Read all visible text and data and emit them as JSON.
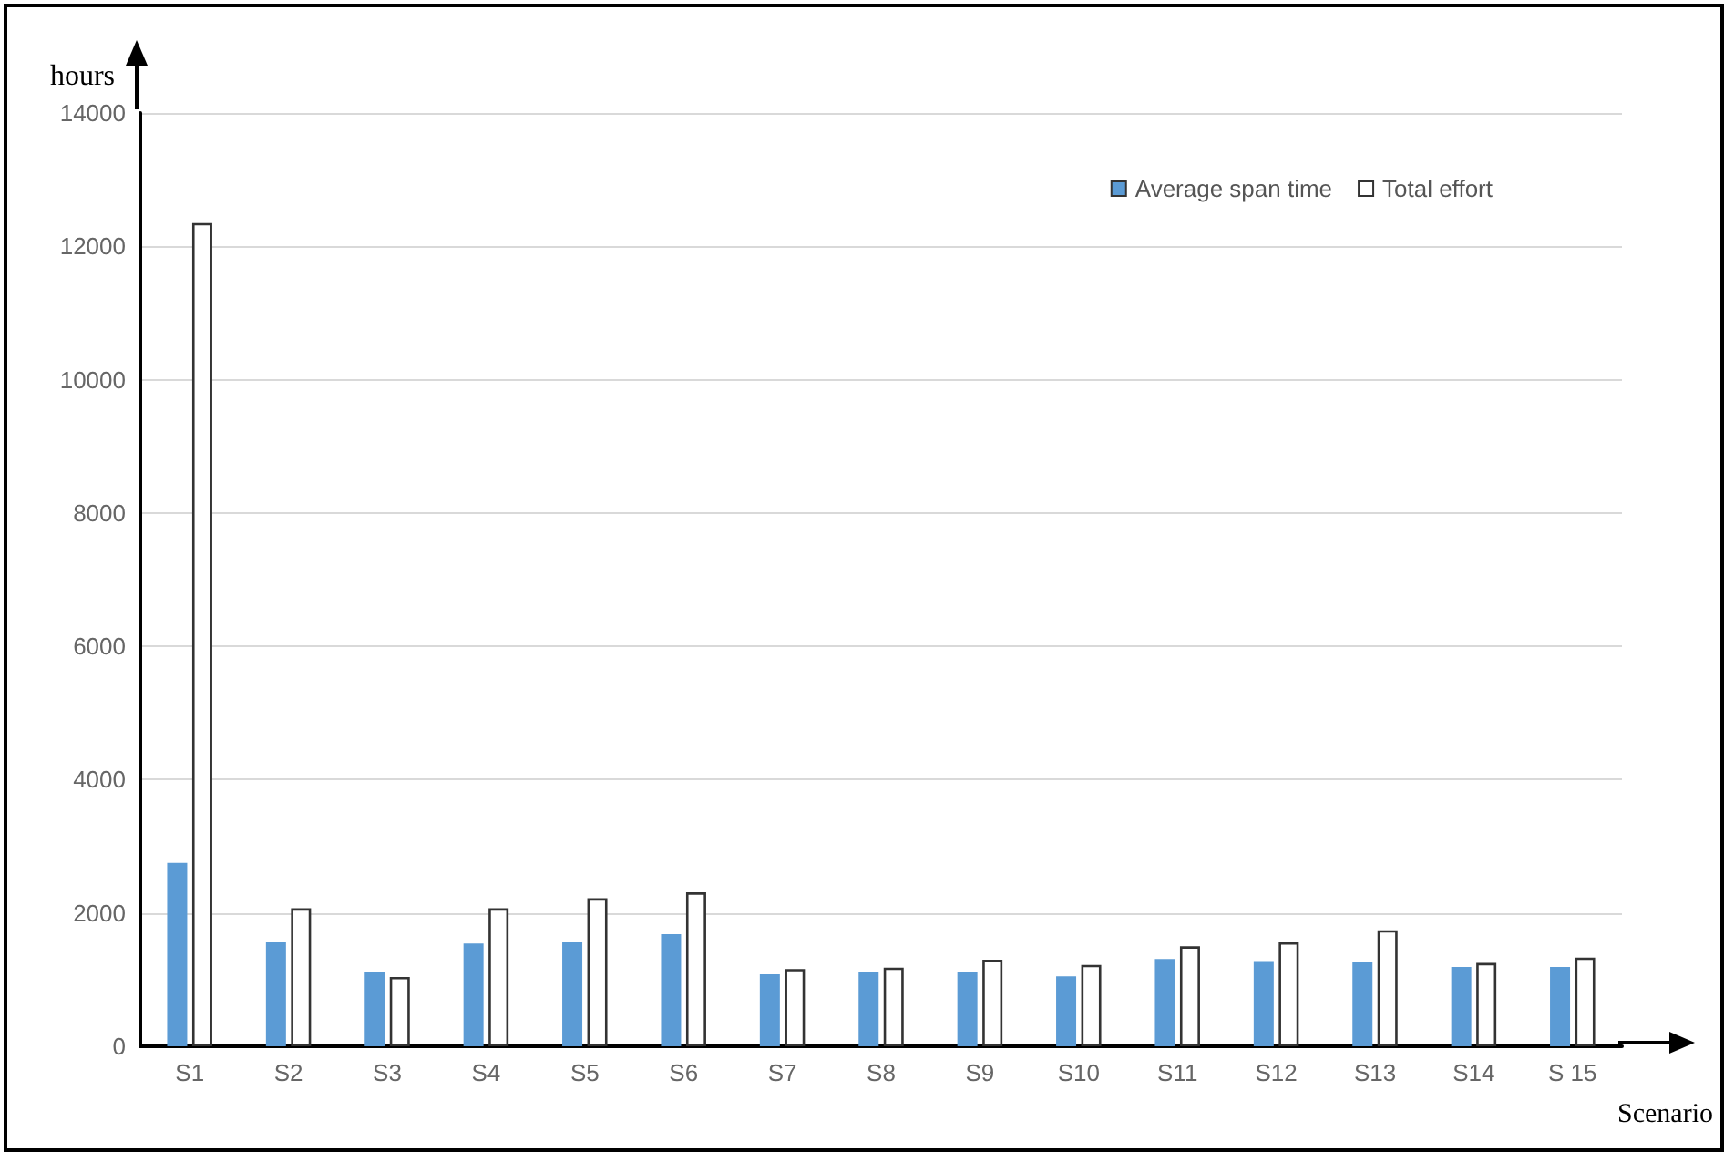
{
  "chart_data": {
    "type": "bar",
    "xlabel": "Scenario",
    "ylabel": "hours",
    "categories": [
      "S1",
      "S2",
      "S3",
      "S4",
      "S5",
      "S6",
      "S7",
      "S8",
      "S9",
      "S10",
      "S11",
      "S12",
      "S13",
      "S14",
      "S 15"
    ],
    "series": [
      {
        "name": "Average span time",
        "color": "#5b9bd5",
        "values": [
          2750,
          1560,
          1110,
          1540,
          1560,
          1680,
          1080,
          1110,
          1110,
          1050,
          1310,
          1280,
          1260,
          1190,
          1190
        ]
      },
      {
        "name": "Total effort",
        "color": "#ffffff",
        "values": [
          12350,
          2070,
          1040,
          2070,
          2220,
          2310,
          1160,
          1180,
          1300,
          1220,
          1500,
          1560,
          1740,
          1250,
          1330
        ]
      }
    ],
    "ylim": [
      0,
      14000
    ],
    "yticks": [
      0,
      2000,
      4000,
      6000,
      8000,
      10000,
      12000,
      14000
    ],
    "grid": "y",
    "legend": "top right"
  }
}
